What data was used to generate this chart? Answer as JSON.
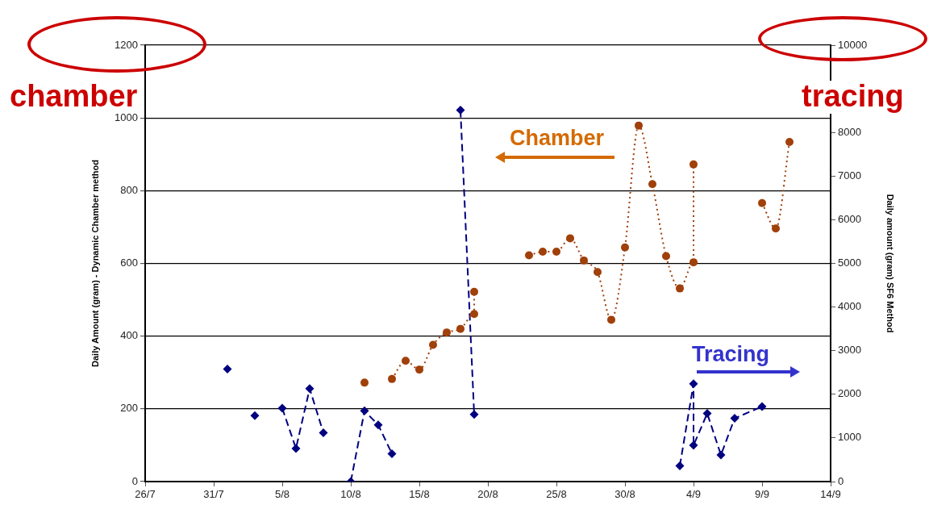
{
  "chart_data": {
    "type": "line",
    "ylabel": "Daily Amount (gram) - Dynamic Chamber method",
    "y2label": "Daily amount (gram) SF6 Method",
    "annotations": [
      "chamber",
      "tracing"
    ],
    "xlim": [
      "--07-26",
      "--09-14"
    ],
    "xticks": [
      {
        "value": "--07-26",
        "label": "26/7"
      },
      {
        "value": "--07-31",
        "label": "31/7"
      },
      {
        "value": "--08-05",
        "label": "5/8"
      },
      {
        "value": "--08-10",
        "label": "10/8"
      },
      {
        "value": "--08-15",
        "label": "15/8"
      },
      {
        "value": "--08-20",
        "label": "20/8"
      },
      {
        "value": "--08-25",
        "label": "25/8"
      },
      {
        "value": "--08-30",
        "label": "30/8"
      },
      {
        "value": "--09-04",
        "label": "4/9"
      },
      {
        "value": "--09-09",
        "label": "9/9"
      },
      {
        "value": "--09-14",
        "label": "14/9"
      }
    ],
    "ylim": [
      0,
      1200
    ],
    "yticks": [
      0,
      200,
      400,
      600,
      800,
      1000,
      1200
    ],
    "y2lim": [
      0,
      10000
    ],
    "y2ticks": [
      0,
      1000,
      2000,
      3000,
      4000,
      5000,
      6000,
      7000,
      8000,
      10000
    ],
    "grid": "y",
    "series": [
      {
        "name": "Chamber",
        "color": "#a0400a",
        "marker": "circle",
        "line_style": "dotted",
        "x": [
          "--08-11",
          "--08-12",
          "--08-13",
          "--08-14",
          "--08-15",
          "--08-16",
          "--08-17",
          "--08-18",
          "--08-19",
          "--08-19",
          "--08-21",
          "--08-23",
          "--08-24",
          "--08-25",
          "--08-26",
          "--08-27",
          "--08-28",
          "--08-29",
          "--08-30",
          "--08-31",
          "--09-01",
          "--09-02",
          "--09-03",
          "--09-04",
          "--09-04",
          "--09-06",
          "--09-09",
          "--09-10",
          "--09-11"
        ],
        "values": [
          272,
          null,
          282,
          332,
          308,
          376,
          410,
          420,
          461,
          522,
          null,
          622,
          632,
          632,
          669,
          608,
          576,
          445,
          644,
          979,
          818,
          620,
          531,
          603,
          872,
          null,
          766,
          696,
          934
        ]
      },
      {
        "name": "Tracing",
        "color": "#000080",
        "marker": "diamond",
        "line_style": "dashed",
        "axis": "y2",
        "x": [
          "--08-01",
          "--08-02",
          "--08-03",
          "--08-04",
          "--08-05",
          "--08-06",
          "--08-07",
          "--08-08",
          "--08-09",
          "--08-10",
          "--08-11",
          "--08-12",
          "--08-13",
          "--08-15",
          "--08-18",
          "--08-19",
          "--08-25",
          "--09-03",
          "--09-04",
          "--09-04",
          "--09-05",
          "--09-06",
          "--09-07",
          "--09-09"
        ],
        "values": [
          2580,
          null,
          1510,
          null,
          1680,
          760,
          2130,
          1120,
          null,
          0,
          1620,
          1300,
          640,
          null,
          8510,
          1540,
          null,
          360,
          2240,
          830,
          1560,
          610,
          1450,
          1720
        ]
      }
    ]
  }
}
